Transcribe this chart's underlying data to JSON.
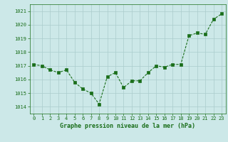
{
  "x": [
    0,
    1,
    2,
    3,
    4,
    5,
    6,
    7,
    8,
    9,
    10,
    11,
    12,
    13,
    14,
    15,
    16,
    17,
    18,
    19,
    20,
    21,
    22,
    23
  ],
  "y": [
    1017.1,
    1017.0,
    1016.7,
    1016.5,
    1016.7,
    1015.8,
    1015.3,
    1015.0,
    1014.2,
    1016.2,
    1016.5,
    1015.4,
    1015.9,
    1015.9,
    1016.5,
    1017.0,
    1016.9,
    1017.1,
    1017.1,
    1019.2,
    1019.4,
    1019.3,
    1020.4,
    1020.8
  ],
  "line_color": "#1a6e1a",
  "marker": "s",
  "marker_size": 2.2,
  "bg_color": "#cce8e8",
  "grid_color": "#aacccc",
  "xlabel": "Graphe pression niveau de la mer (hPa)",
  "xlabel_color": "#1a6e1a",
  "tick_color": "#1a6e1a",
  "ylim": [
    1013.5,
    1021.5
  ],
  "xlim": [
    -0.5,
    23.5
  ],
  "yticks": [
    1014,
    1015,
    1016,
    1017,
    1018,
    1019,
    1020,
    1021
  ],
  "xticks": [
    0,
    1,
    2,
    3,
    4,
    5,
    6,
    7,
    8,
    9,
    10,
    11,
    12,
    13,
    14,
    15,
    16,
    17,
    18,
    19,
    20,
    21,
    22,
    23
  ],
  "tick_fontsize": 5.0,
  "xlabel_fontsize": 6.0,
  "linewidth": 0.8
}
